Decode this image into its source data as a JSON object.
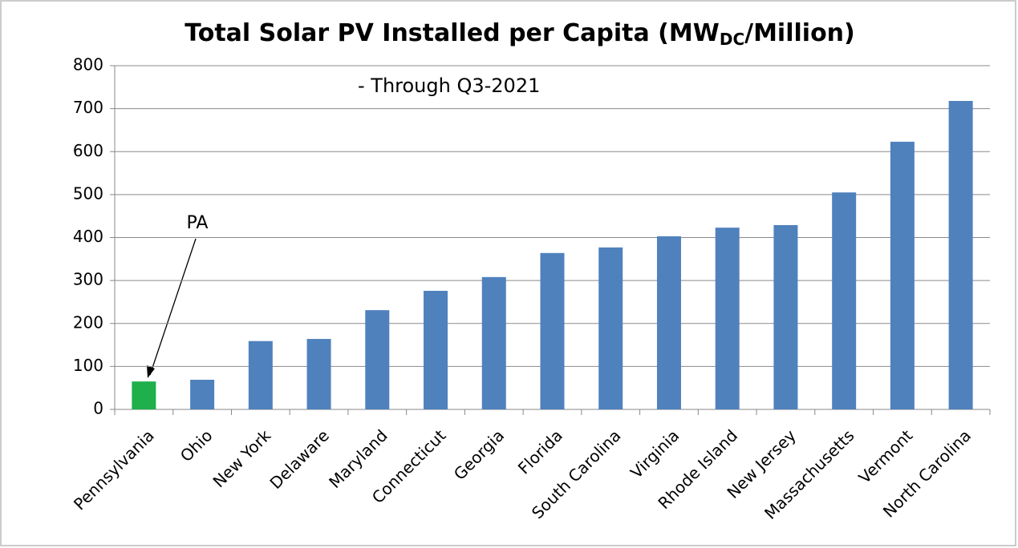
{
  "chart_data": {
    "type": "bar",
    "title": [
      "Total Solar PV Installed per Capita (MW",
      "DC",
      "/Million)"
    ],
    "subtitle": "- Through Q3-2021",
    "annotation": "PA",
    "categories": [
      "Pennsylvania",
      "Ohio",
      "New York",
      "Delaware",
      "Maryland",
      "Connecticut",
      "Georgia",
      "Florida",
      "South Carolina",
      "Virginia",
      "Rhode Island",
      "New Jersey",
      "Massachusetts",
      "Vermont",
      "North Carolina"
    ],
    "values": [
      65,
      69,
      159,
      164,
      231,
      276,
      308,
      364,
      377,
      403,
      423,
      429,
      505,
      623,
      718
    ],
    "colors": [
      "#1fb04b",
      "#4f81bd",
      "#4f81bd",
      "#4f81bd",
      "#4f81bd",
      "#4f81bd",
      "#4f81bd",
      "#4f81bd",
      "#4f81bd",
      "#4f81bd",
      "#4f81bd",
      "#4f81bd",
      "#4f81bd",
      "#4f81bd",
      "#4f81bd"
    ],
    "ylim": [
      0,
      800
    ],
    "yticks": [
      0,
      100,
      200,
      300,
      400,
      500,
      600,
      700,
      800
    ],
    "grid": true
  }
}
